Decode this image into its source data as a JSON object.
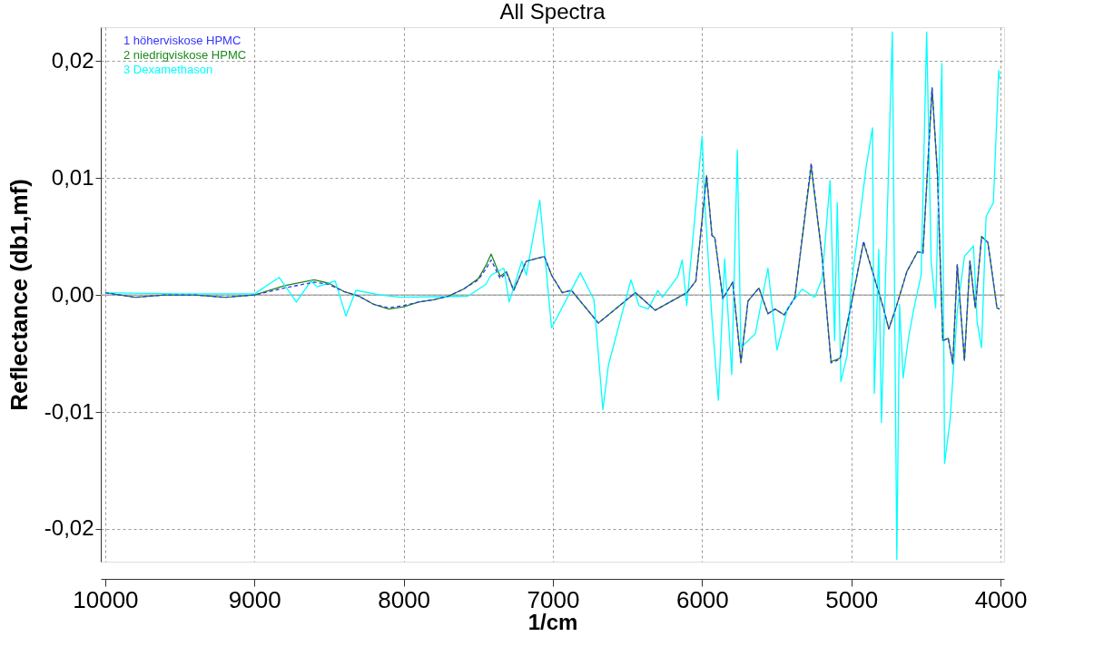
{
  "chart_data": {
    "type": "line",
    "title": "All Spectra",
    "xlabel": "1/cm",
    "ylabel": "Reflectance (db1,mf)",
    "xlim": [
      10030,
      3976
    ],
    "ylim": [
      -0.0228,
      0.0229
    ],
    "xticks": [
      10000,
      9000,
      8000,
      7000,
      6000,
      5000,
      4000
    ],
    "yticks": [
      {
        "value": -0.02,
        "label": "-0,02"
      },
      {
        "value": -0.01,
        "label": "-0,01"
      },
      {
        "value": 0,
        "label": "0,00"
      },
      {
        "value": 0.01,
        "label": "0,01"
      },
      {
        "value": 0.02,
        "label": "0,02"
      }
    ],
    "grid": true,
    "legend": "top left",
    "line_style": "solid",
    "marker": "none",
    "ref_lines": [
      {
        "axis": "y",
        "value": 0,
        "color": "#a0a0a0"
      }
    ],
    "series": [
      {
        "name": "1 höherviskose HPMC",
        "color": "#3535ff",
        "line_style": "dashed",
        "x": [
          10000,
          9800,
          9600,
          9400,
          9200,
          9000,
          8800,
          8600,
          8500,
          8400,
          8300,
          8200,
          8100,
          8000,
          7900,
          7800,
          7700,
          7600,
          7500,
          7450,
          7414,
          7353,
          7311,
          7263,
          7178,
          7057,
          7009,
          6937,
          6876,
          6695,
          6447,
          6314,
          6103,
          6042,
          5970,
          5934,
          5915,
          5861,
          5795,
          5740,
          5692,
          5619,
          5559,
          5511,
          5450,
          5378,
          5269,
          5196,
          5136,
          5076,
          4991,
          4918,
          4785,
          4749,
          4701,
          4628,
          4556,
          4520,
          4459,
          4423,
          4387,
          4350,
          4320,
          4290,
          4242,
          4205,
          4169,
          4127,
          4085,
          4024,
          4006
        ],
        "values": [
          0.0002,
          -0.0002,
          0.0,
          0.0,
          -0.0002,
          0.0,
          0.0006,
          0.0011,
          0.0009,
          0.0003,
          -0.0001,
          -0.0008,
          -0.0011,
          -0.0009,
          -0.0006,
          -0.0004,
          -0.0001,
          0.0005,
          0.0013,
          0.0022,
          0.003,
          0.0014,
          0.0019,
          0.0004,
          0.0029,
          0.0033,
          0.0017,
          0.0002,
          0.0004,
          -0.0024,
          0.0002,
          -0.0013,
          0.0002,
          0.0012,
          0.0102,
          0.0051,
          0.0049,
          -0.0003,
          0.0011,
          -0.0058,
          -0.0005,
          0.0006,
          -0.0016,
          -0.0012,
          -0.0017,
          -0.0002,
          0.0113,
          0.0033,
          -0.0058,
          -0.0055,
          -0.0002,
          0.0046,
          -0.0011,
          -0.0029,
          -0.0011,
          0.002,
          0.0037,
          0.0036,
          0.0177,
          0.0104,
          -0.0039,
          -0.0037,
          -0.0059,
          0.0026,
          -0.0056,
          0.0029,
          -0.0011,
          0.005,
          0.0045,
          -0.0011,
          -0.0012
        ]
      },
      {
        "name": "2 niedrigviskose HPMC",
        "color": "#1a8a1a",
        "x": [
          10000,
          9800,
          9600,
          9400,
          9200,
          9000,
          8800,
          8600,
          8500,
          8400,
          8300,
          8200,
          8100,
          8000,
          7900,
          7800,
          7700,
          7600,
          7500,
          7450,
          7414,
          7353,
          7311,
          7263,
          7178,
          7057,
          7009,
          6937,
          6876,
          6695,
          6447,
          6314,
          6103,
          6042,
          5970,
          5934,
          5915,
          5861,
          5795,
          5740,
          5692,
          5619,
          5559,
          5511,
          5450,
          5378,
          5269,
          5196,
          5136,
          5076,
          4991,
          4918,
          4785,
          4749,
          4701,
          4628,
          4556,
          4520,
          4459,
          4423,
          4387,
          4350,
          4320,
          4290,
          4242,
          4205,
          4169,
          4127,
          4085,
          4024,
          4006
        ],
        "values": [
          0.0002,
          -0.0002,
          0.0,
          0.0,
          -0.0002,
          0.0,
          0.0008,
          0.0013,
          0.001,
          0.0003,
          -0.0001,
          -0.0008,
          -0.0012,
          -0.001,
          -0.0006,
          -0.0004,
          -0.0001,
          0.0005,
          0.0014,
          0.0025,
          0.0035,
          0.0016,
          0.002,
          0.0004,
          0.0029,
          0.0033,
          0.0017,
          0.0002,
          0.0004,
          -0.0024,
          0.0002,
          -0.0013,
          0.0002,
          0.0012,
          0.0102,
          0.0051,
          0.0049,
          -0.0003,
          0.0011,
          -0.0057,
          -0.0005,
          0.0006,
          -0.0016,
          -0.0012,
          -0.0017,
          -0.0002,
          0.011,
          0.0033,
          -0.0057,
          -0.0054,
          -0.0002,
          0.0045,
          -0.0011,
          -0.0029,
          -0.0011,
          0.002,
          0.0037,
          0.0036,
          0.0177,
          0.0104,
          -0.0039,
          -0.0037,
          -0.0059,
          0.0026,
          -0.0056,
          0.0029,
          -0.0011,
          0.005,
          0.0045,
          -0.0011,
          -0.0012
        ]
      },
      {
        "name": "3 Dexamethason",
        "color": "#00ffff",
        "x": [
          10000,
          9500,
          9000,
          8834,
          8719,
          8622,
          8580,
          8459,
          8387,
          8320,
          8157,
          8018,
          7571,
          7450,
          7414,
          7329,
          7293,
          7208,
          7178,
          7088,
          7009,
          6816,
          6725,
          6665,
          6628,
          6477,
          6423,
          6362,
          6296,
          6266,
          6163,
          6133,
          6103,
          6042,
          6000,
          5982,
          5934,
          5891,
          5849,
          5801,
          5764,
          5740,
          5643,
          5559,
          5498,
          5426,
          5329,
          5245,
          5196,
          5142,
          5112,
          5094,
          5070,
          5027,
          5003,
          4900,
          4858,
          4846,
          4816,
          4798,
          4725,
          4695,
          4677,
          4653,
          4616,
          4580,
          4532,
          4495,
          4465,
          4435,
          4393,
          4375,
          4338,
          4290,
          4242,
          4181,
          4157,
          4127,
          4097,
          4048,
          4012,
          4006
        ],
        "values": [
          0.0002,
          0.0001,
          0.0001,
          0.0015,
          -0.0006,
          0.0012,
          0.0007,
          0.0012,
          -0.0018,
          0.0004,
          0.0,
          -0.0002,
          -0.0001,
          0.0009,
          0.0017,
          0.0023,
          -0.0006,
          0.0029,
          0.0017,
          0.0081,
          -0.0028,
          0.0019,
          -0.0004,
          -0.0098,
          -0.006,
          0.0013,
          -0.0009,
          -0.0012,
          0.0004,
          -0.0002,
          0.0016,
          0.003,
          -0.0009,
          0.0076,
          0.0136,
          0.0079,
          -0.002,
          -0.009,
          0.0031,
          -0.0068,
          0.0124,
          -0.0045,
          -0.0033,
          0.0023,
          -0.0047,
          -0.0011,
          0.0005,
          -0.0002,
          0.0014,
          0.0098,
          -0.0039,
          0.0079,
          -0.0074,
          -0.0051,
          0.0005,
          0.011,
          0.0143,
          -0.0084,
          0.0039,
          -0.0109,
          0.0225,
          -0.0226,
          -0.0008,
          -0.0071,
          -0.0036,
          -0.0011,
          0.0017,
          0.0225,
          0.0029,
          -0.0011,
          0.0198,
          -0.0144,
          -0.0107,
          -0.0014,
          0.0033,
          0.0042,
          -0.0023,
          -0.0045,
          0.0067,
          0.0079,
          0.0192,
          0.0185
        ]
      }
    ]
  }
}
